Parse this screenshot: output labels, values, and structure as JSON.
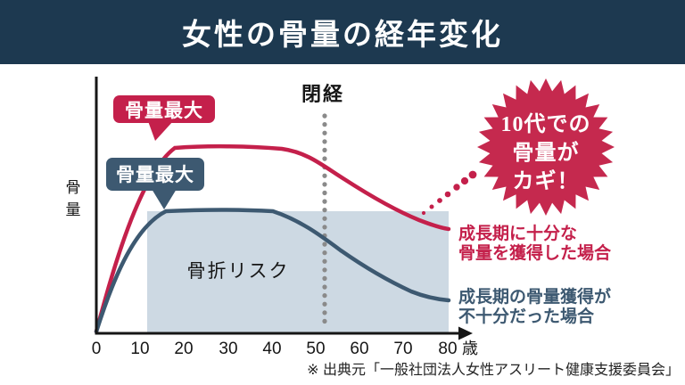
{
  "header": {
    "title": "女性の骨量の経年変化"
  },
  "colors": {
    "navy-dark": "#1d3950",
    "navy": "#3d5971",
    "crimson": "#c4204b",
    "burst": "#c5294e",
    "shade": "#cdd9e3",
    "dot-gray": "#8a8a8a"
  },
  "chart": {
    "y_axis_label_chars": [
      "骨",
      "量"
    ],
    "x_ticks": [
      "0",
      "10",
      "20",
      "30",
      "40",
      "50",
      "60",
      "70",
      "80"
    ],
    "x_unit": "歳",
    "menopause_label": "閉経",
    "fracture_risk_label": "骨折リスク",
    "peak_badge_sufficient": "骨量最大",
    "peak_badge_insufficient": "骨量最大",
    "starburst_lines": [
      "10代での",
      "骨量が",
      "カギ！"
    ],
    "caption_sufficient_lines": [
      "成長期に十分な",
      "骨量を獲得した場合"
    ],
    "caption_insufficient_lines": [
      "成長期の骨量獲得が",
      "不十分だった場合"
    ]
  },
  "source": "※ 出典元「一般社団法人女性アスリート健康支援委員会」",
  "chart_data": {
    "type": "line",
    "title": "女性の骨量の経年変化",
    "xlabel": "歳",
    "ylabel": "骨量",
    "x": [
      0,
      10,
      20,
      30,
      40,
      50,
      60,
      70,
      80
    ],
    "xlim": [
      0,
      80
    ],
    "grid": false,
    "series": [
      {
        "name": "成長期に十分な骨量を獲得した場合",
        "color": "#c4204b",
        "values_percent_of_peak": [
          0,
          70,
          100,
          100,
          100,
          89,
          81,
          65,
          56
        ]
      },
      {
        "name": "成長期の骨量獲得が不十分だった場合",
        "color": "#3d5971",
        "values_percent_of_peak": [
          0,
          45,
          66,
          66,
          66,
          49,
          37,
          24,
          17
        ]
      }
    ],
    "menopause_marker_age": 52,
    "fracture_risk_region": {
      "age_start": 11.5,
      "age_end": 80,
      "top_percent_of_peak": 66
    }
  }
}
